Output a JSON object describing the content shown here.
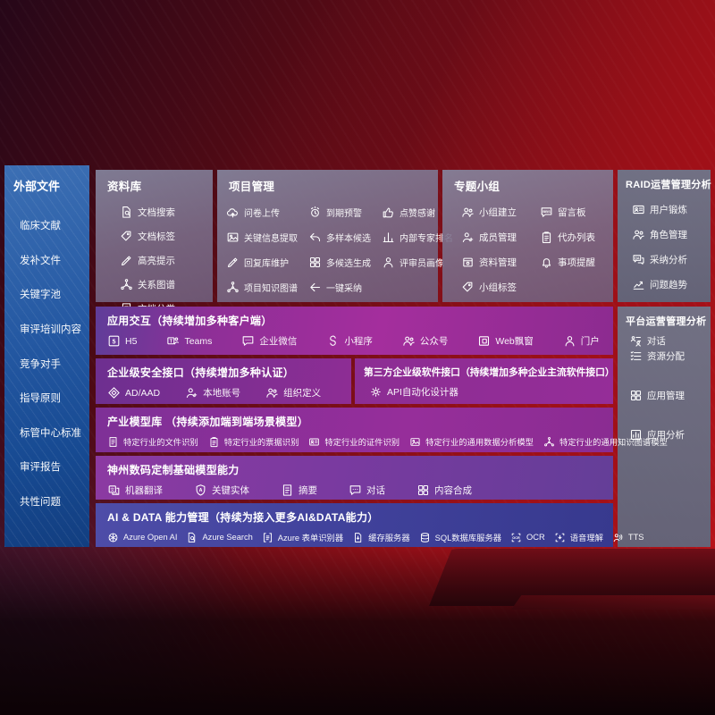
{
  "colors": {
    "background_red": "#b01318",
    "sidebar_blue": "#2c61a9",
    "top_panel_mauve": "#7b7490",
    "side_panel_slate": "#68718a",
    "capability_purple": "#982e97",
    "ai_data_indigo": "#42439c"
  },
  "sidebar": {
    "title": "外部文件",
    "items": [
      {
        "label": "临床文献"
      },
      {
        "label": "发补文件"
      },
      {
        "label": "关键字池"
      },
      {
        "label": "审评培训内容"
      },
      {
        "label": "竞争对手"
      },
      {
        "label": "指导原则"
      },
      {
        "label": "标管中心标准"
      },
      {
        "label": "审评报告"
      },
      {
        "label": "共性问题"
      }
    ]
  },
  "sections": {
    "library": {
      "title": "资料库",
      "items": [
        {
          "label": "文档搜索",
          "icon": "document-search-icon"
        },
        {
          "label": "文档标签",
          "icon": "tag-icon"
        },
        {
          "label": "高亮提示",
          "icon": "highlight-pen-icon"
        },
        {
          "label": "关系图谱",
          "icon": "relation-graph-icon"
        },
        {
          "label": "文档分类",
          "icon": "document-classify-icon"
        }
      ]
    },
    "project": {
      "title": "项目管理",
      "items": [
        {
          "label": "问卷上传",
          "icon": "questionnaire-upload-icon"
        },
        {
          "label": "到期预警",
          "icon": "due-alert-icon"
        },
        {
          "label": "点赞感谢",
          "icon": "thumbs-up-icon"
        },
        {
          "label": "关键信息提取",
          "icon": "key-info-extract-icon"
        },
        {
          "label": "多样本候选",
          "icon": "multi-sample-icon"
        },
        {
          "label": "内部专家排名",
          "icon": "expert-ranking-icon"
        },
        {
          "label": "回复库维护",
          "icon": "reply-maintain-icon"
        },
        {
          "label": "多候选生成",
          "icon": "multi-candidate-icon"
        },
        {
          "label": "评审员画像",
          "icon": "reviewer-portrait-icon"
        },
        {
          "label": "项目知识图谱",
          "icon": "project-knowledge-icon"
        },
        {
          "label": "一键采纳",
          "icon": "one-click-adopt-icon"
        }
      ]
    },
    "groups": {
      "title": "专题小组",
      "items": [
        {
          "label": "小组建立",
          "icon": "team-build-icon"
        },
        {
          "label": "留言板",
          "icon": "bbs-icon"
        },
        {
          "label": "成员管理",
          "icon": "member-manage-icon"
        },
        {
          "label": "代办列表",
          "icon": "todo-list-icon"
        },
        {
          "label": "资料管理",
          "icon": "data-manage-icon"
        },
        {
          "label": "事项提醒",
          "icon": "bell-icon"
        },
        {
          "label": "小组标签",
          "icon": "group-tag-icon"
        }
      ]
    },
    "raid": {
      "title": "RAID运营管理分析",
      "items": [
        {
          "label": "用户锻炼",
          "icon": "user-card-icon"
        },
        {
          "label": "角色管理",
          "icon": "role-manage-icon"
        },
        {
          "label": "采纳分析",
          "icon": "adopt-analysis-icon"
        },
        {
          "label": "问题趋势",
          "icon": "trend-icon"
        }
      ]
    },
    "platform": {
      "title": "平台运营管理分析",
      "items": [
        {
          "label": "资源分配",
          "icon": "resource-alloc-icon"
        },
        {
          "label": "应用管理",
          "icon": "app-manage-icon"
        },
        {
          "label": "应用分析",
          "icon": "app-analysis-icon"
        }
      ]
    },
    "interaction": {
      "title": "应用交互（持续增加多种客户端）",
      "items": [
        {
          "label": "H5",
          "icon": "h5-icon"
        },
        {
          "label": "Teams",
          "icon": "teams-icon"
        },
        {
          "label": "企业微信",
          "icon": "wecom-icon"
        },
        {
          "label": "小程序",
          "icon": "miniprogram-icon"
        },
        {
          "label": "公众号",
          "icon": "official-account-icon"
        },
        {
          "label": "Web飘窗",
          "icon": "web-popup-icon"
        },
        {
          "label": "门户",
          "icon": "portal-icon"
        },
        {
          "label": "对话",
          "icon": "dialog-icon"
        }
      ]
    },
    "security": {
      "title": "企业级安全接口（持续增加多种认证）",
      "items": [
        {
          "label": "AD/AAD",
          "icon": "ad-aad-icon"
        },
        {
          "label": "本地账号",
          "icon": "local-account-icon"
        },
        {
          "label": "组织定义",
          "icon": "org-define-icon"
        }
      ]
    },
    "thirdparty": {
      "title": "第三方企业级软件接口（持续增加多种企业主流软件接口）",
      "items": [
        {
          "label": "API自动化设计器",
          "icon": "api-designer-icon"
        }
      ]
    },
    "models": {
      "title": "产业模型库 （持续添加端到端场景模型）",
      "items": [
        {
          "label": "特定行业的文件识别",
          "icon": "file-recognition-icon"
        },
        {
          "label": "特定行业的票据识别",
          "icon": "receipt-recognition-icon"
        },
        {
          "label": "特定行业的证件识别",
          "icon": "id-recognition-icon"
        },
        {
          "label": "特定行业的通用数据分析模型",
          "icon": "data-analysis-model-icon"
        },
        {
          "label": "特定行业的通用知识图谱模型",
          "icon": "knowledge-graph-model-icon"
        }
      ]
    },
    "basemodels": {
      "title": "神州数码定制基础模型能力",
      "items": [
        {
          "label": "机器翻译",
          "icon": "translate-icon"
        },
        {
          "label": "关键实体",
          "icon": "entity-icon"
        },
        {
          "label": "摘要",
          "icon": "summary-icon"
        },
        {
          "label": "对话",
          "icon": "chat-icon"
        },
        {
          "label": "内容合成",
          "icon": "compose-icon"
        }
      ]
    },
    "aidata": {
      "title": "AI & DATA 能力管理（持续为接入更多AI&DATA能力）",
      "items": [
        {
          "label": "Azure Open AI",
          "icon": "openai-icon"
        },
        {
          "label": "Azure Search",
          "icon": "azure-search-icon"
        },
        {
          "label": "Azure 表单识别器",
          "icon": "form-recognizer-icon"
        },
        {
          "label": "缓存服务器",
          "icon": "cache-server-icon"
        },
        {
          "label": "SQL数据库服务器",
          "icon": "sql-db-icon"
        },
        {
          "label": "OCR",
          "icon": "ocr-icon"
        },
        {
          "label": "语音理解",
          "icon": "speech-icon"
        },
        {
          "label": "TTS",
          "icon": "tts-icon"
        }
      ]
    }
  }
}
